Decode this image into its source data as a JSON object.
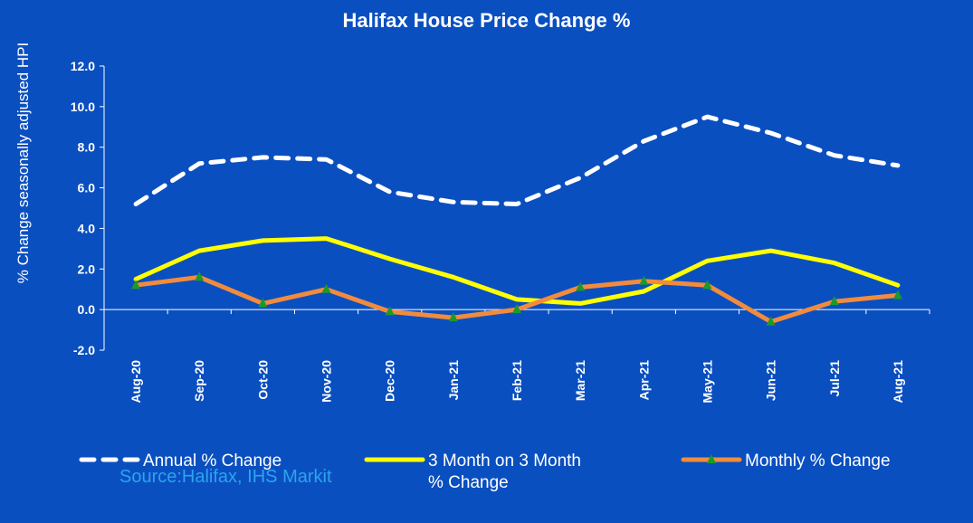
{
  "chart_data": {
    "type": "line",
    "title": "Halifax House Price Change %",
    "ylabel": "% Change seasonally adjusted HPI",
    "xlabel": "",
    "ylim": [
      -2.0,
      12.0
    ],
    "ytick_step": 2,
    "ytick_labels": [
      "-2.0",
      "0.0",
      "2.0",
      "4.0",
      "6.0",
      "8.0",
      "10.0",
      "12.0"
    ],
    "categories": [
      "Aug-20",
      "Sep-20",
      "Oct-20",
      "Nov-20",
      "Dec-20",
      "Jan-21",
      "Feb-21",
      "Mar-21",
      "Apr-21",
      "May-21",
      "Jun-21",
      "Jul-21",
      "Aug-21"
    ],
    "series": [
      {
        "name": "Annual % Change",
        "color": "#ffffff",
        "style": "dashed",
        "values": [
          5.2,
          7.2,
          7.5,
          7.4,
          5.8,
          5.3,
          5.2,
          6.5,
          8.3,
          9.5,
          8.7,
          7.6,
          7.1
        ]
      },
      {
        "name": "3 Month on 3 Month % Change",
        "color": "#ffff00",
        "style": "solid",
        "values": [
          1.5,
          2.9,
          3.4,
          3.5,
          2.5,
          1.6,
          0.5,
          0.3,
          0.9,
          2.4,
          2.9,
          2.3,
          1.2
        ]
      },
      {
        "name": "Monthly % Change",
        "color": "#f28b3c",
        "style": "solid",
        "marker": "triangle",
        "marker_color": "#1a9a2a",
        "values": [
          1.2,
          1.6,
          0.3,
          1.0,
          -0.1,
          -0.4,
          0.0,
          1.1,
          1.4,
          1.2,
          -0.6,
          0.4,
          0.7
        ]
      }
    ],
    "grid": false,
    "legend": "bottom",
    "legend_lines": [
      [
        "Annual % Change"
      ],
      [
        "3 Month on 3 Month",
        "% Change"
      ],
      [
        "Monthly % Change"
      ]
    ]
  },
  "source": "Source:Halifax, IHS Markit"
}
